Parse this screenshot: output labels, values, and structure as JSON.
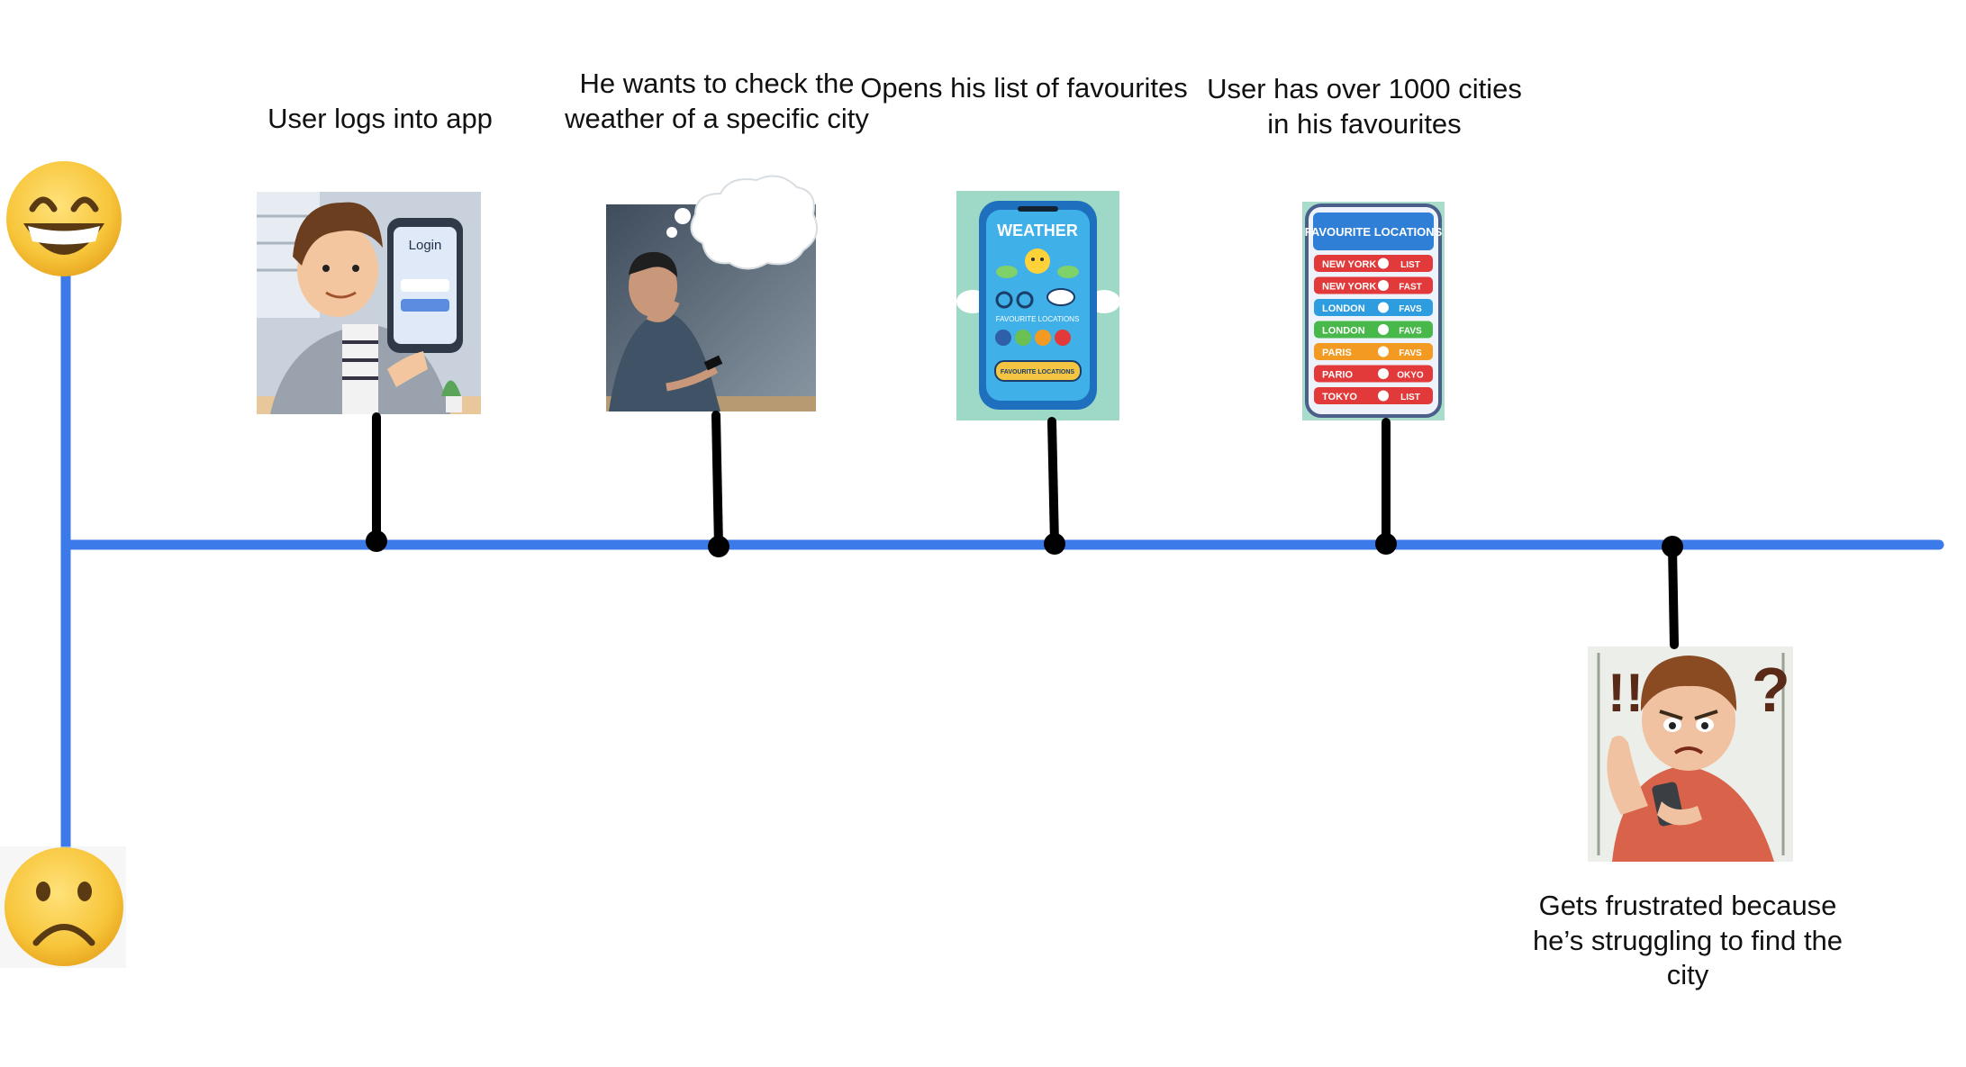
{
  "colors": {
    "axis": "#3b7ae8",
    "stem": "#000000",
    "emoji_face": "#f7c53a",
    "emoji_edge": "#d99a1a"
  },
  "axes": {
    "top_icon": "grinning-face-emoji",
    "bottom_icon": "frowning-face-emoji"
  },
  "steps": [
    {
      "caption": "User logs into app",
      "image": "man-holding-phone-login-illustration",
      "phone_label": "Login"
    },
    {
      "caption": "He wants to check the weather of a specific city",
      "image": "thinking-man-with-thought-bubble-illustration"
    },
    {
      "caption": "Opens his list of favourites",
      "image": "weather-app-phone-illustration",
      "phone_title": "WEATHER",
      "phone_sub": "FAVOURITE LOCATIONS",
      "phone_button": "FAVOURITE LOCATIONS"
    },
    {
      "caption": "User has over 1000 cities in his favourites",
      "image": "favourite-locations-list-phone-illustration",
      "phone_title": "FAVOURITE LOCATIONS",
      "rows": [
        {
          "city": "NEW YORK",
          "tag": "LIST",
          "color": "#e23a3a"
        },
        {
          "city": "NEW YORK",
          "tag": "FAST",
          "color": "#e23a3a"
        },
        {
          "city": "LONDON",
          "tag": "FAVS",
          "color": "#2d9de0"
        },
        {
          "city": "LONDON",
          "tag": "FAVS",
          "color": "#49b84a"
        },
        {
          "city": "PARIS",
          "tag": "FAVS",
          "color": "#f29a22"
        },
        {
          "city": "PARIO",
          "tag": "OKYO",
          "color": "#e23a3a"
        },
        {
          "city": "TOKYO",
          "tag": "LIST",
          "color": "#e23a3a"
        }
      ]
    },
    {
      "caption": "Gets frustrated because he’s struggling to find the city",
      "image": "frustrated-boy-with-phone-illustration"
    }
  ]
}
